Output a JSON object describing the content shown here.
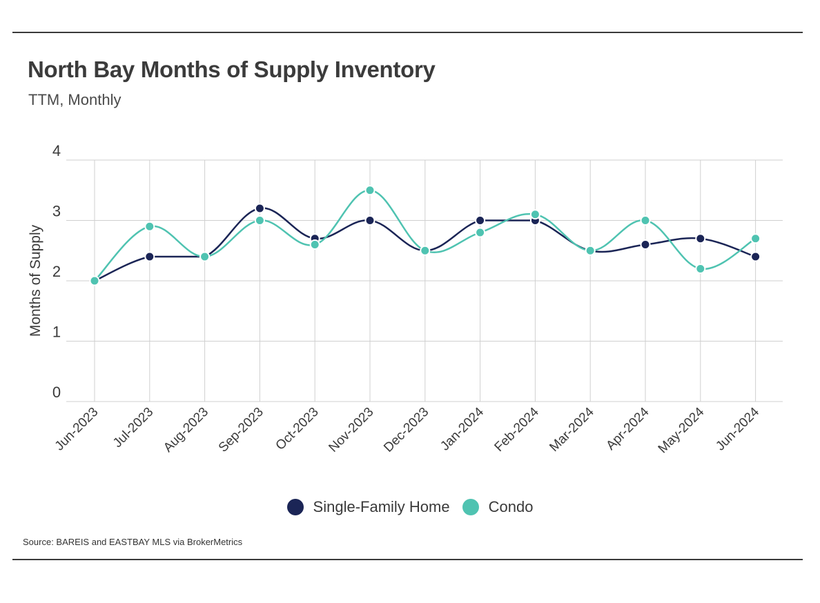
{
  "title": "North Bay Months of Supply Inventory",
  "subtitle": "TTM, Monthly",
  "source": "Source:  BAREIS and EASTBAY MLS via BrokerMetrics",
  "colors": {
    "single_family": "#1b2556",
    "condo": "#4fc3b1",
    "grid": "#cfcfcf",
    "text": "#3a3a3a"
  },
  "chart_data": {
    "type": "line",
    "smooth": true,
    "categories": [
      "Jun-2023",
      "Jul-2023",
      "Aug-2023",
      "Sep-2023",
      "Oct-2023",
      "Nov-2023",
      "Dec-2023",
      "Jan-2024",
      "Feb-2024",
      "Mar-2024",
      "Apr-2024",
      "May-2024",
      "Jun-2024"
    ],
    "series": [
      {
        "name": "Single-Family Home",
        "color": "#1b2556",
        "values": [
          2.0,
          2.4,
          2.4,
          3.2,
          2.7,
          3.0,
          2.5,
          3.0,
          3.0,
          2.5,
          2.6,
          2.7,
          2.4
        ]
      },
      {
        "name": "Condo",
        "color": "#4fc3b1",
        "values": [
          2.0,
          2.9,
          2.4,
          3.0,
          2.6,
          3.5,
          2.5,
          2.8,
          3.1,
          2.5,
          3.0,
          2.2,
          2.7
        ]
      }
    ],
    "ylabel": "Months of Supply",
    "xlabel": "",
    "ylim": [
      0,
      4
    ],
    "yticks": [
      0,
      1,
      2,
      3,
      4
    ],
    "grid": true,
    "legend_position": "bottom-center"
  }
}
